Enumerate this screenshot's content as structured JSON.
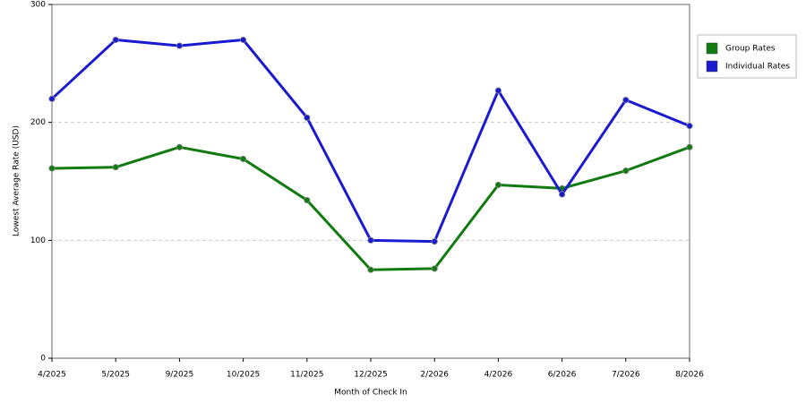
{
  "chart_data": {
    "type": "line",
    "x_label": "Month of Check In",
    "y_label": "Lowest Average Rate (USD)",
    "categories": [
      "4/2025",
      "5/2025",
      "9/2025",
      "10/2025",
      "11/2025",
      "12/2025",
      "2/2026",
      "4/2026",
      "6/2026",
      "7/2026",
      "8/2026"
    ],
    "series": [
      {
        "name": "Group Rates",
        "color": "#117a11",
        "values": [
          161,
          162,
          179,
          169,
          134,
          75,
          76,
          147,
          144,
          159,
          179
        ]
      },
      {
        "name": "Individual Rates",
        "color": "#1a1ad0",
        "values": [
          220,
          270,
          265,
          270,
          204,
          100,
          99,
          227,
          139,
          219,
          197
        ]
      }
    ],
    "ylim": [
      0,
      300
    ],
    "yticks": [
      0,
      100,
      200,
      300
    ],
    "grid": true,
    "legend": "right"
  }
}
